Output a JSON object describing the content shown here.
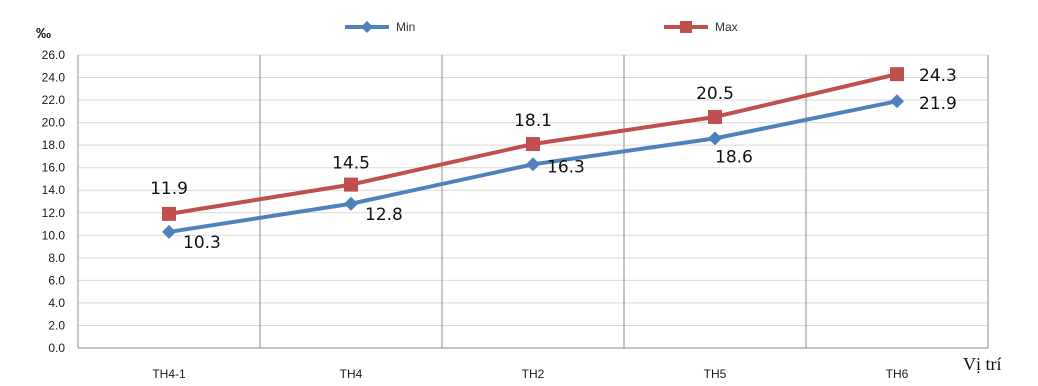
{
  "chart_data": {
    "type": "line",
    "categories": [
      "TH4-1",
      "TH4",
      "TH2",
      "TH5",
      "TH6"
    ],
    "series": [
      {
        "name": "Min",
        "values": [
          10.3,
          12.8,
          16.3,
          18.6,
          21.9
        ],
        "color": "#4f81bd",
        "marker": "diamond"
      },
      {
        "name": "Max",
        "values": [
          11.9,
          14.5,
          18.1,
          20.5,
          24.3
        ],
        "color": "#c0504d",
        "marker": "square"
      }
    ],
    "ylabel": "‰",
    "xlabel": "Vị trí",
    "ylim": [
      0,
      26
    ],
    "ytick_step": 2,
    "yticks": [
      "0.0",
      "2.0",
      "4.0",
      "6.0",
      "8.0",
      "10.0",
      "12.0",
      "14.0",
      "16.0",
      "18.0",
      "20.0",
      "22.0",
      "24.0",
      "26.0"
    ],
    "grid": true,
    "legend": "top-center",
    "data_labels": {
      "Min": [
        "10.3",
        "12.8",
        "16.3",
        "18.6",
        "21.9"
      ],
      "Max": [
        "11.9",
        "14.5",
        "18.1",
        "20.5",
        "24.3"
      ]
    }
  }
}
